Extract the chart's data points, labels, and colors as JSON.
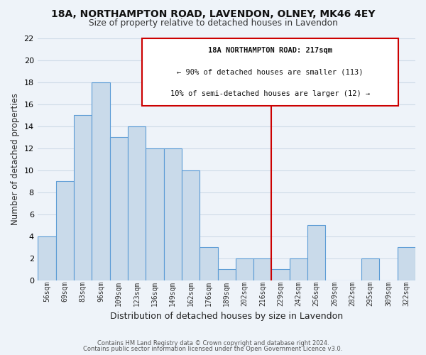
{
  "title": "18A, NORTHAMPTON ROAD, LAVENDON, OLNEY, MK46 4EY",
  "subtitle": "Size of property relative to detached houses in Lavendon",
  "xlabel": "Distribution of detached houses by size in Lavendon",
  "ylabel": "Number of detached properties",
  "categories": [
    "56sqm",
    "69sqm",
    "83sqm",
    "96sqm",
    "109sqm",
    "123sqm",
    "136sqm",
    "149sqm",
    "162sqm",
    "176sqm",
    "189sqm",
    "202sqm",
    "216sqm",
    "229sqm",
    "242sqm",
    "256sqm",
    "269sqm",
    "282sqm",
    "295sqm",
    "309sqm",
    "322sqm"
  ],
  "values": [
    4,
    9,
    15,
    18,
    13,
    14,
    12,
    12,
    10,
    3,
    1,
    2,
    2,
    1,
    2,
    5,
    0,
    0,
    2,
    0,
    3
  ],
  "bar_color": "#c9daea",
  "bar_edge_color": "#5b9bd5",
  "background_color": "#eef3f9",
  "grid_color": "#d0dce8",
  "vline_x": 12.5,
  "vline_color": "#cc0000",
  "annotation_title": "18A NORTHAMPTON ROAD: 217sqm",
  "annotation_line1": "← 90% of detached houses are smaller (113)",
  "annotation_line2": "10% of semi-detached houses are larger (12) →",
  "annotation_box_color": "#ffffff",
  "annotation_box_edge": "#cc0000",
  "ylim": [
    0,
    22
  ],
  "yticks": [
    0,
    2,
    4,
    6,
    8,
    10,
    12,
    14,
    16,
    18,
    20,
    22
  ],
  "footer1": "Contains HM Land Registry data © Crown copyright and database right 2024.",
  "footer2": "Contains public sector information licensed under the Open Government Licence v3.0."
}
